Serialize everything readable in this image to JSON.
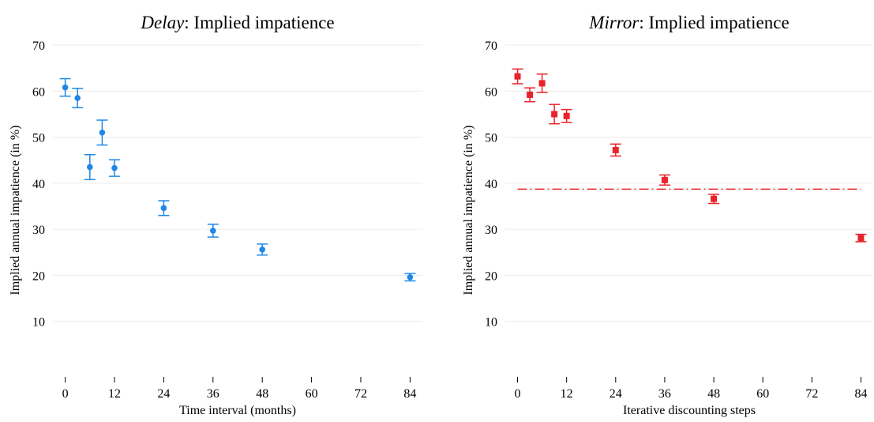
{
  "chart_data": [
    {
      "type": "errorbar",
      "title": [
        "Delay",
        ": Implied impatience"
      ],
      "x_label": "Time interval (months)",
      "y_label": "Implied annual impatience (in %)",
      "xlim": [
        -3,
        87
      ],
      "ylim": [
        0,
        70
      ],
      "xticks": [
        0,
        12,
        24,
        36,
        48,
        60,
        72,
        84
      ],
      "yticks": [
        10,
        20,
        30,
        40,
        50,
        60,
        70
      ],
      "grid": true,
      "marker": "circle",
      "series": [
        {
          "color": "#1e88e5",
          "x": [
            0,
            3,
            6,
            9,
            12,
            24,
            36,
            48,
            84
          ],
          "values": [
            60.8,
            58.5,
            43.5,
            51,
            43.3,
            34.6,
            29.7,
            25.6,
            19.6
          ],
          "errors": [
            1.9,
            2.1,
            2.7,
            2.7,
            1.8,
            1.6,
            1.4,
            1.2,
            0.8
          ]
        }
      ]
    },
    {
      "type": "errorbar",
      "title": [
        "Mirror",
        ": Implied impatience"
      ],
      "x_label": "Iterative discounting steps",
      "y_label": "Implied annual impatience (in %)",
      "xlim": [
        -3,
        87
      ],
      "ylim": [
        0,
        70
      ],
      "xticks": [
        0,
        12,
        24,
        36,
        48,
        60,
        72,
        84
      ],
      "yticks": [
        10,
        20,
        30,
        40,
        50,
        60,
        70
      ],
      "grid": true,
      "marker": "square",
      "series": [
        {
          "color": "#e8232a",
          "x": [
            0,
            3,
            6,
            9,
            12,
            24,
            36,
            48,
            84
          ],
          "values": [
            63.2,
            59.2,
            61.7,
            55,
            54.6,
            47.2,
            40.7,
            36.6,
            28.1
          ],
          "errors": [
            1.6,
            1.5,
            2.0,
            2.1,
            1.4,
            1.3,
            1.1,
            1.0,
            0.8
          ]
        }
      ],
      "hline": {
        "value": 38.7,
        "xrange": [
          0,
          84
        ],
        "color": "#e8232a"
      }
    }
  ]
}
